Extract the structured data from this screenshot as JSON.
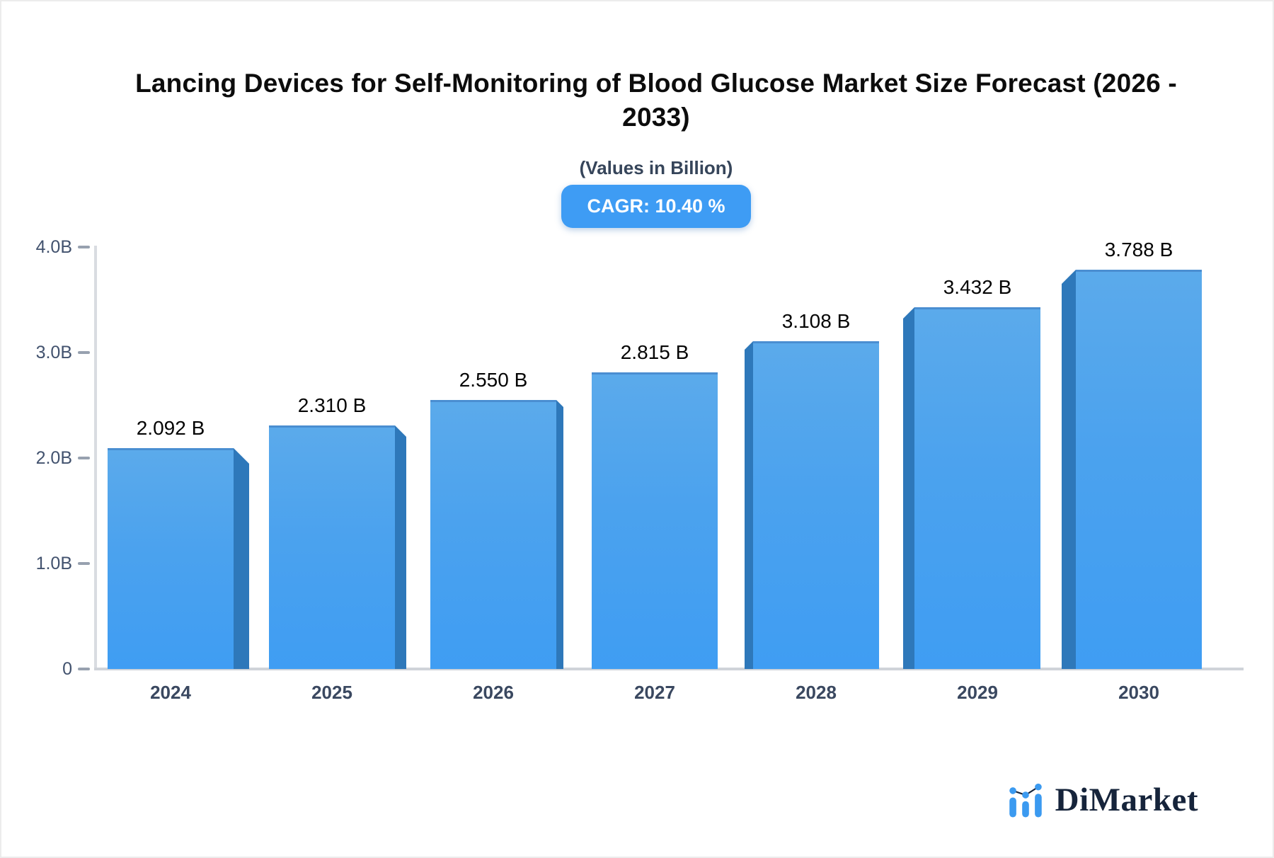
{
  "header": {
    "title_line1": "Lancing Devices for Self-Monitoring of Blood Glucose Market Size Forecast (2026 -",
    "title_line2": "2033)",
    "subtitle": "(Values in Billion)",
    "cagr_badge": "CAGR: 10.40 %"
  },
  "footer": {
    "logo_text": "DiMarket"
  },
  "colors": {
    "accent_blue": "#3e9cf4",
    "bar_gradient_top": "#5baaeb",
    "bar_gradient_bottom": "#3f9df3",
    "bar_side": "#2e78ba",
    "bar_top_edge": "#4a8ed1",
    "axis_line": "#d9dce1",
    "tick_dash": "#97a1af",
    "axis_text": "#42526e",
    "title_text": "#0c0c0c",
    "subtitle_text": "#36455a",
    "logo_navy": "#16243b",
    "logo_blue": "#3b9af0"
  },
  "chart_data": {
    "type": "bar",
    "title": "Lancing Devices for Self-Monitoring of Blood Glucose Market Size Forecast (2026 - 2033)",
    "subtitle": "(Values in Billion)",
    "annotation": "CAGR: 10.40 %",
    "categories": [
      "2024",
      "2025",
      "2026",
      "2027",
      "2028",
      "2029",
      "2030"
    ],
    "values": [
      2.092,
      2.31,
      2.55,
      2.815,
      3.108,
      3.432,
      3.788
    ],
    "value_labels": [
      "2.092 B",
      "2.310 B",
      "2.550 B",
      "2.815 B",
      "3.108 B",
      "3.432 B",
      "3.788 B"
    ],
    "xlabel": "",
    "ylabel": "",
    "ylim": [
      0,
      4.0
    ],
    "yticks": [
      {
        "v": 0.0,
        "label": "0"
      },
      {
        "v": 1.0,
        "label": "1.0B"
      },
      {
        "v": 2.0,
        "label": "2.0B"
      },
      {
        "v": 3.0,
        "label": "3.0B"
      },
      {
        "v": 4.0,
        "label": "4.0B"
      }
    ],
    "grid": false,
    "legend": false
  }
}
